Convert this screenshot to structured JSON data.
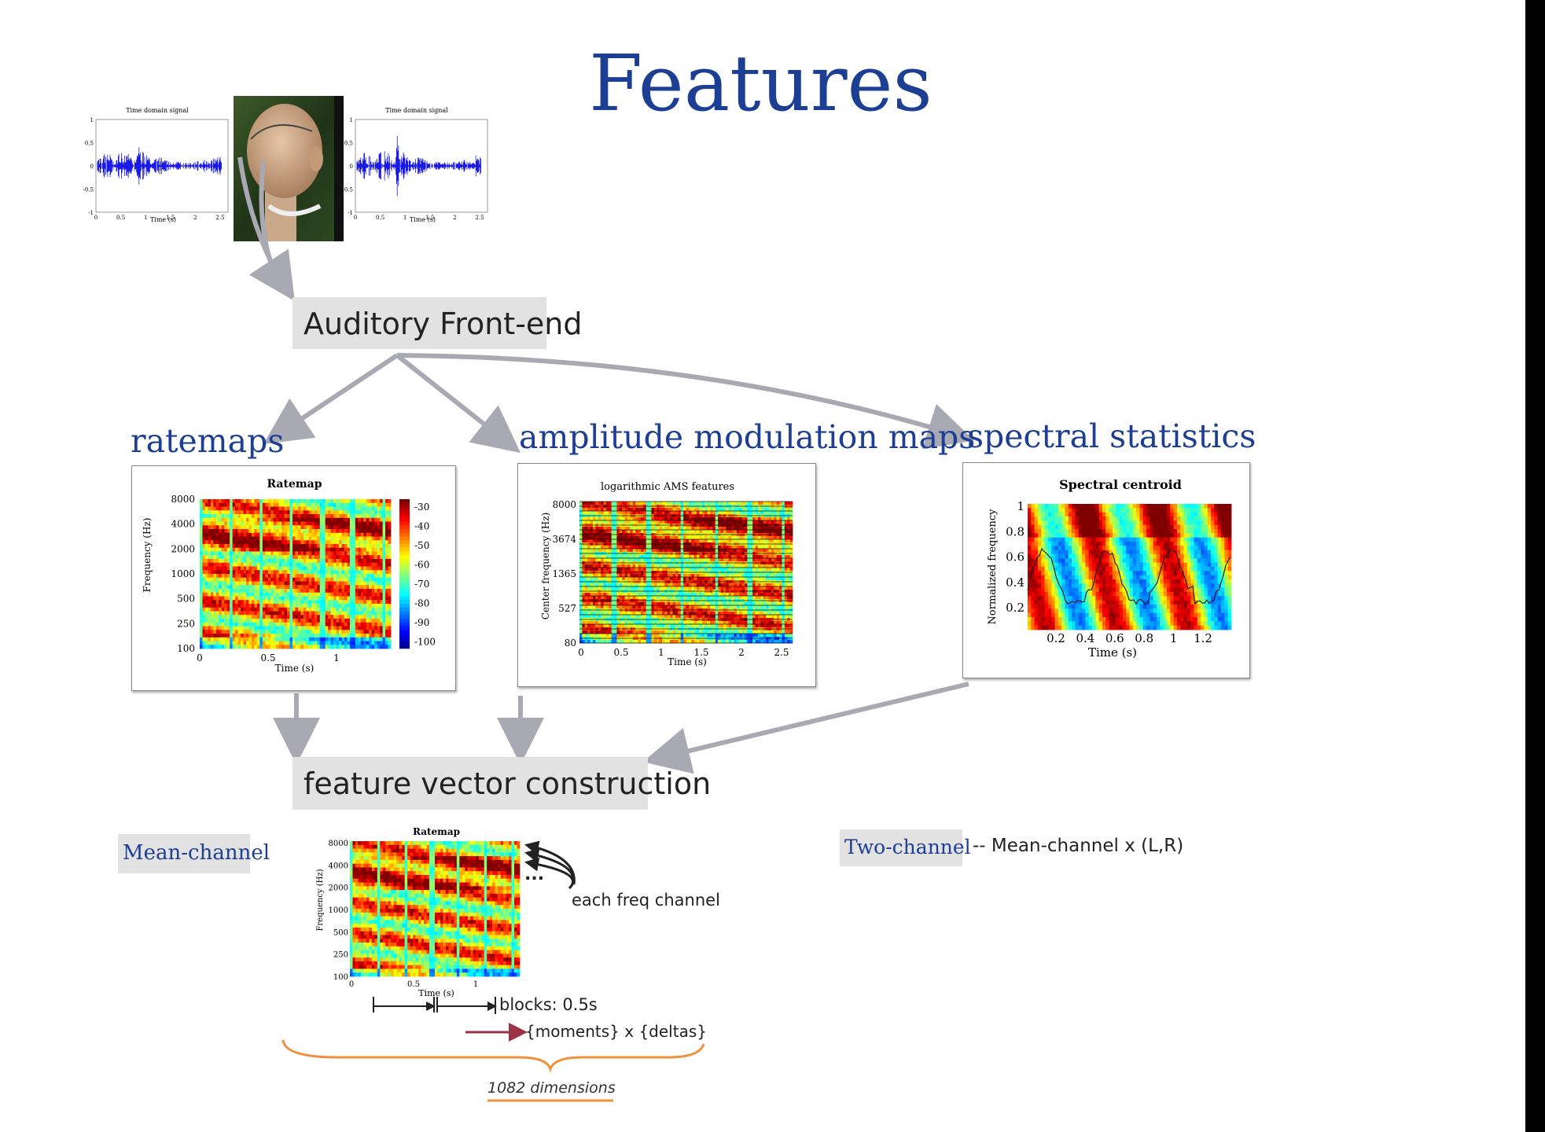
{
  "page_title": "Features",
  "waveform_plot": {
    "title": "Time domain signal",
    "xlabel": "Time (s)",
    "yticks": [
      "1",
      "0.5",
      "0",
      "-0.5",
      "-1"
    ],
    "xticks": [
      "0",
      "0.5",
      "1",
      "1.5",
      "2",
      "2.5"
    ]
  },
  "boxes": {
    "frontend": "Auditory Front-end",
    "fvc": "feature vector construction"
  },
  "sections": {
    "ratemaps": "ratemaps",
    "ams": "amplitude modulation maps",
    "spectral": "spectral statistics"
  },
  "ratemap_plot": {
    "title": "Ratemap",
    "ylabel": "Frequency (Hz)",
    "xlabel": "Time (s)",
    "yticks": [
      "8000",
      "4000",
      "2000",
      "1000",
      "500",
      "250",
      "100"
    ],
    "xticks": [
      "0",
      "0.5",
      "1"
    ],
    "colorbar": [
      "-30",
      "-40",
      "-50",
      "-60",
      "-70",
      "-80",
      "-90",
      "-100"
    ]
  },
  "ams_plot": {
    "title": "logarithmic AMS features",
    "ylabel": "Center frequency (Hz)",
    "xlabel": "Time (s)",
    "yticks": [
      "8000",
      "3674",
      "1365",
      "527",
      "80"
    ],
    "xticks": [
      "0",
      "0.5",
      "1",
      "1.5",
      "2",
      "2.5"
    ]
  },
  "spectral_plot": {
    "title": "Spectral centroid",
    "ylabel": "Normalized frequency",
    "xlabel": "Time (s)",
    "yticks": [
      "1",
      "0.8",
      "0.6",
      "0.4",
      "0.2"
    ],
    "xticks": [
      "0.2",
      "0.4",
      "0.6",
      "0.8",
      "1",
      "1.2"
    ]
  },
  "mean_channel": {
    "label": "Mean-channel",
    "annotation": "each freq channel",
    "ellipsis": "...",
    "blocks": "blocks: 0.5s",
    "moments": "{moments} x {deltas}",
    "dims": "1082 dimensions"
  },
  "two_channel": {
    "label": "Two-channel",
    "desc": "-- Mean-channel x (L,R)"
  },
  "colors": {
    "title_blue": "#1c3f94",
    "box_gray": "#e2e2e2",
    "arrow_gray": "#a9a9b3",
    "brace_orange": "#f0913a",
    "moments_arrow": "#9b3246"
  }
}
